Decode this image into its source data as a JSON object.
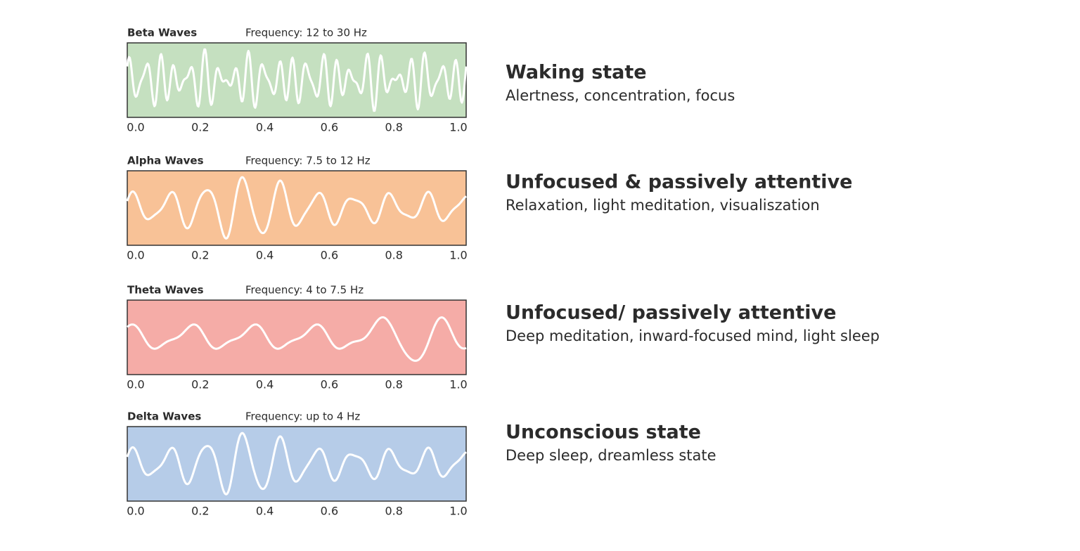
{
  "chart_data": [
    {
      "type": "line",
      "title": "Beta Waves",
      "subtitle": "Frequency: 12 to 30 Hz",
      "heading": "Waking state",
      "description": "Alertness, concentration, focus",
      "color": "#c5e0c0",
      "xlim": [
        0,
        1
      ],
      "xticks": [
        {
          "value": 0,
          "label": "0.0"
        },
        {
          "value": 0.2,
          "label": "0.2"
        },
        {
          "value": 0.4,
          "label": "0.4"
        },
        {
          "value": 0.6,
          "label": "0.6"
        },
        {
          "value": 0.8,
          "label": "0.8"
        },
        {
          "value": 1,
          "label": "1.0"
        }
      ]
    },
    {
      "type": "line",
      "title": "Alpha Waves",
      "subtitle": "Frequency: 7.5 to 12 Hz",
      "heading": "Unfocused & passively attentive",
      "description": "Relaxation, light meditation, visualiszation",
      "color": "#f8c297",
      "xlim": [
        0,
        1
      ],
      "xticks": [
        {
          "value": 0,
          "label": "0.0"
        },
        {
          "value": 0.2,
          "label": "0.2"
        },
        {
          "value": 0.4,
          "label": "0.4"
        },
        {
          "value": 0.6,
          "label": "0.6"
        },
        {
          "value": 0.8,
          "label": "0.8"
        },
        {
          "value": 1,
          "label": "1.0"
        }
      ]
    },
    {
      "type": "line",
      "title": "Theta Waves",
      "subtitle": "Frequency: 4 to 7.5 Hz",
      "heading": "Unfocused/ passively attentive",
      "description": "Deep meditation, inward-focused mind, light sleep",
      "color": "#f5aca7",
      "xlim": [
        0,
        1
      ],
      "xticks": [
        {
          "value": 0,
          "label": "0.0"
        },
        {
          "value": 0.2,
          "label": "0.2"
        },
        {
          "value": 0.4,
          "label": "0.4"
        },
        {
          "value": 0.6,
          "label": "0.6"
        },
        {
          "value": 0.8,
          "label": "0.8"
        },
        {
          "value": 1,
          "label": "1.0"
        }
      ]
    },
    {
      "type": "line",
      "title": "Delta Waves",
      "subtitle": "Frequency: up to 4 Hz",
      "heading": "Unconscious state",
      "description": "Deep sleep, dreamless state",
      "color": "#b6cce8",
      "xlim": [
        0,
        1
      ],
      "xticks": [
        {
          "value": 0,
          "label": "0.0"
        },
        {
          "value": 0.2,
          "label": "0.2"
        },
        {
          "value": 0.4,
          "label": "0.4"
        },
        {
          "value": 0.6,
          "label": "0.6"
        },
        {
          "value": 0.8,
          "label": "0.8"
        },
        {
          "value": 1,
          "label": "1.0"
        }
      ]
    }
  ]
}
